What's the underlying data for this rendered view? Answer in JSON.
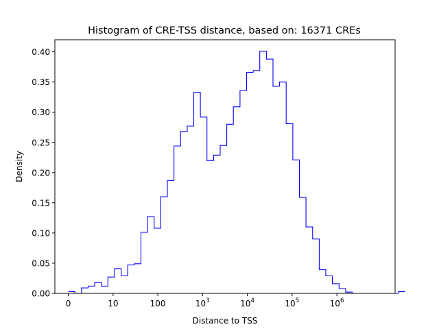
{
  "chart_data": {
    "type": "histogram",
    "title": "Histogram of CRE-TSS distance, based on: 16371 CREs",
    "xlabel": "Distance to TSS",
    "ylabel": "Density",
    "x_scale": "symlog",
    "xlim": [
      -0.3,
      7.3
    ],
    "ylim": [
      0,
      0.42
    ],
    "grid": false,
    "legend": "none",
    "x_ticks": [
      {
        "value": 0,
        "base": "0",
        "exp": ""
      },
      {
        "value": 1,
        "base": "10",
        "exp": ""
      },
      {
        "value": 2,
        "base": "100",
        "exp": ""
      },
      {
        "value": 3,
        "base": "10",
        "exp": "3"
      },
      {
        "value": 4,
        "base": "10",
        "exp": "4"
      },
      {
        "value": 5,
        "base": "10",
        "exp": "5"
      },
      {
        "value": 6,
        "base": "10",
        "exp": "6"
      }
    ],
    "y_ticks": [
      "0.00",
      "0.05",
      "0.10",
      "0.15",
      "0.20",
      "0.25",
      "0.30",
      "0.35",
      "0.40"
    ],
    "line_color": "#0000ff",
    "bin_start": 0.0,
    "bin_width": 0.1475,
    "values": [
      0.003,
      0.0,
      0.009,
      0.012,
      0.018,
      0.012,
      0.027,
      0.041,
      0.029,
      0.047,
      0.049,
      0.101,
      0.127,
      0.108,
      0.16,
      0.187,
      0.244,
      0.268,
      0.277,
      0.333,
      0.292,
      0.22,
      0.229,
      0.245,
      0.28,
      0.309,
      0.336,
      0.366,
      0.369,
      0.401,
      0.388,
      0.343,
      0.35,
      0.281,
      0.221,
      0.159,
      0.11,
      0.09,
      0.039,
      0.029,
      0.016,
      0.008,
      0.002,
      0.0,
      0.0,
      0.0,
      0.0,
      0.0,
      0.0,
      0.0,
      0.003
    ]
  }
}
